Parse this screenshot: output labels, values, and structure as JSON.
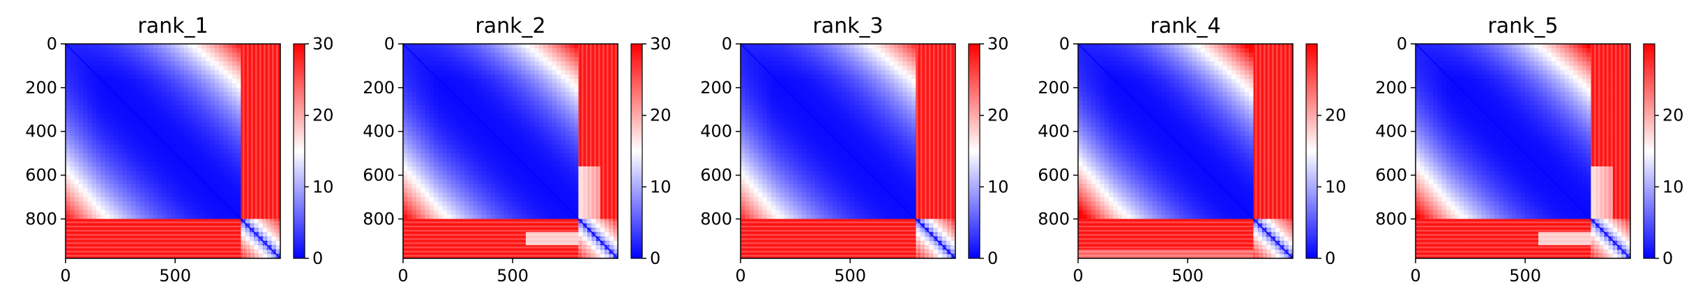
{
  "chart_data": [
    {
      "type": "heatmap",
      "title": "rank_1",
      "xticks": [
        "0",
        "500"
      ],
      "yticks": [
        "0",
        "200",
        "400",
        "600",
        "800"
      ],
      "cbar_ticks": [
        "0",
        "10",
        "20",
        "30"
      ],
      "xlim": [
        0,
        980
      ],
      "ylim": [
        980,
        0
      ],
      "vmin": 0,
      "vmax": 30,
      "colormap": "bwr",
      "block_boundary": 800,
      "variant": 1
    },
    {
      "type": "heatmap",
      "title": "rank_2",
      "xticks": [
        "0",
        "500"
      ],
      "yticks": [
        "0",
        "200",
        "400",
        "600",
        "800"
      ],
      "cbar_ticks": [
        "0",
        "10",
        "20",
        "30"
      ],
      "xlim": [
        0,
        980
      ],
      "ylim": [
        980,
        0
      ],
      "vmin": 0,
      "vmax": 30,
      "colormap": "bwr",
      "block_boundary": 800,
      "variant": 2
    },
    {
      "type": "heatmap",
      "title": "rank_3",
      "xticks": [
        "0",
        "500"
      ],
      "yticks": [
        "0",
        "200",
        "400",
        "600",
        "800"
      ],
      "cbar_ticks": [
        "0",
        "10",
        "20",
        "30"
      ],
      "xlim": [
        0,
        980
      ],
      "ylim": [
        980,
        0
      ],
      "vmin": 0,
      "vmax": 30,
      "colormap": "bwr",
      "block_boundary": 800,
      "variant": 3
    },
    {
      "type": "heatmap",
      "title": "rank_4",
      "xticks": [
        "0",
        "500"
      ],
      "yticks": [
        "0",
        "200",
        "400",
        "600",
        "800"
      ],
      "cbar_ticks": [
        "0",
        "10",
        "20"
      ],
      "xlim": [
        0,
        980
      ],
      "ylim": [
        980,
        0
      ],
      "vmin": 0,
      "vmax": 30,
      "colormap": "bwr",
      "block_boundary": 800,
      "variant": 4
    },
    {
      "type": "heatmap",
      "title": "rank_5",
      "xticks": [
        "0",
        "500"
      ],
      "yticks": [
        "0",
        "200",
        "400",
        "600",
        "800"
      ],
      "cbar_ticks": [
        "0",
        "10",
        "20"
      ],
      "xlim": [
        0,
        980
      ],
      "ylim": [
        980,
        0
      ],
      "vmin": 0,
      "vmax": 30,
      "colormap": "bwr",
      "block_boundary": 800,
      "variant": 5
    }
  ]
}
